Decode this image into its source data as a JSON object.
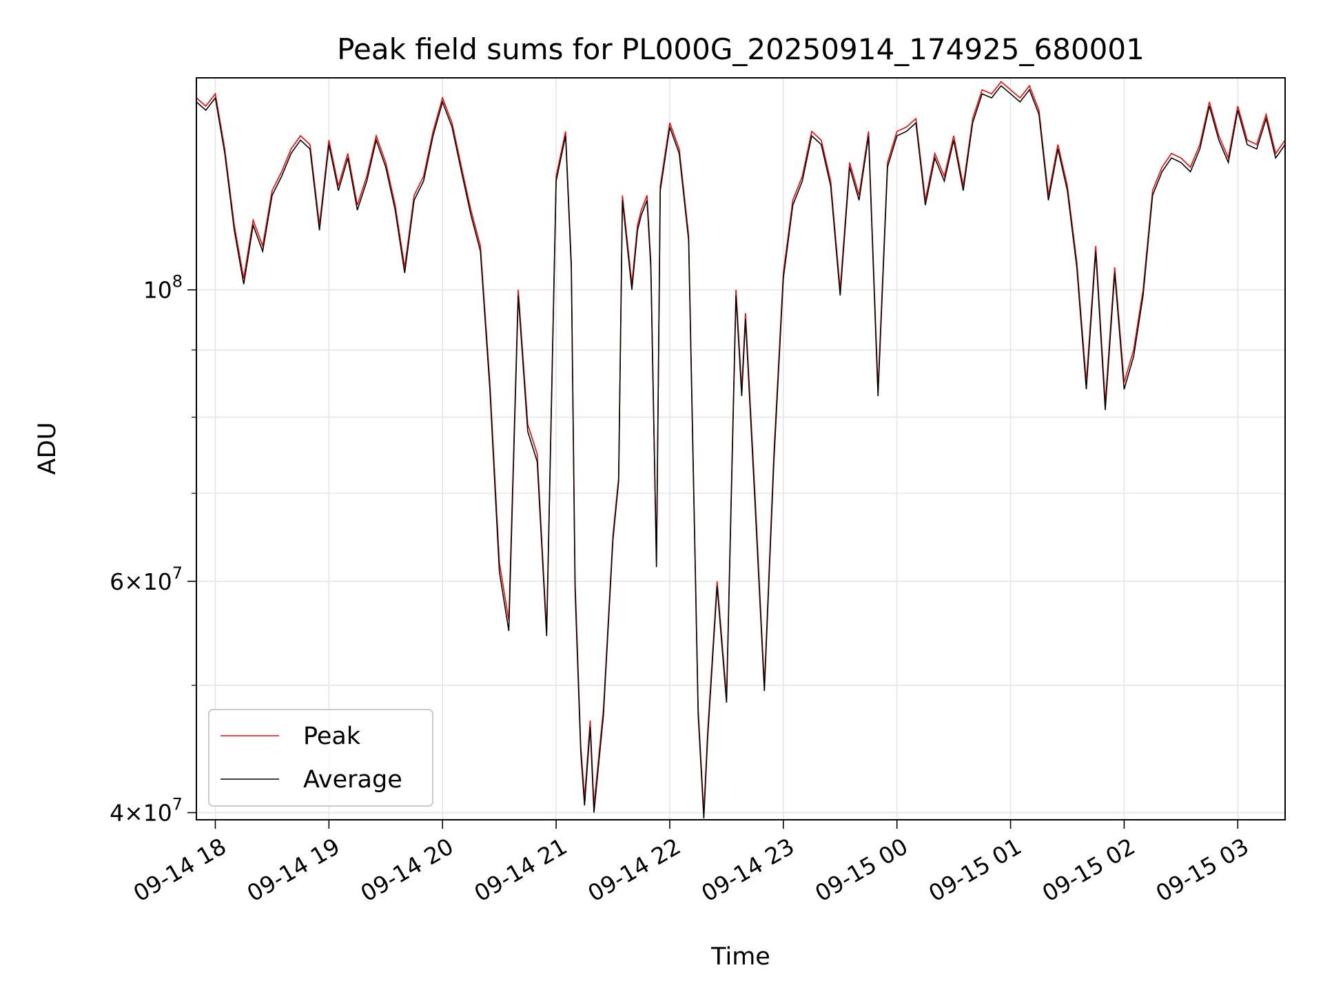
{
  "chart_data": {
    "type": "line",
    "title": "Peak field sums for PL000G_20250914_174925_680001",
    "xlabel": "Time",
    "ylabel": "ADU",
    "yscale": "log",
    "ylim": [
      39500000,
      145000000
    ],
    "xlim": [
      "2025-09-14 17:50",
      "2025-09-15 03:25"
    ],
    "grid": true,
    "legend_position": "lower-left",
    "x_ticks": [
      "09-14 18",
      "09-14 19",
      "09-14 20",
      "09-14 21",
      "09-14 22",
      "09-14 23",
      "09-15 00",
      "09-15 01",
      "09-15 02",
      "09-15 03"
    ],
    "y_major_ticks": [
      {
        "value": 40000000,
        "mantissa": "4",
        "base": "10",
        "exp": "7"
      },
      {
        "value": 60000000,
        "mantissa": "6",
        "base": "10",
        "exp": "7"
      },
      {
        "value": 100000000,
        "mantissa": "",
        "base": "10",
        "exp": "8"
      }
    ],
    "y_minor_ticks": [
      40000000,
      50000000,
      60000000,
      70000000,
      80000000,
      90000000
    ],
    "series": [
      {
        "name": "Peak",
        "color": "#ff0000",
        "x": [
          "2025-09-14 17:50",
          "2025-09-14 17:55",
          "2025-09-14 18:00",
          "2025-09-14 18:05",
          "2025-09-14 18:10",
          "2025-09-14 18:15",
          "2025-09-14 18:20",
          "2025-09-14 18:25",
          "2025-09-14 18:30",
          "2025-09-14 18:35",
          "2025-09-14 18:40",
          "2025-09-14 18:45",
          "2025-09-14 18:50",
          "2025-09-14 18:55",
          "2025-09-14 19:00",
          "2025-09-14 19:05",
          "2025-09-14 19:10",
          "2025-09-14 19:15",
          "2025-09-14 19:20",
          "2025-09-14 19:25",
          "2025-09-14 19:30",
          "2025-09-14 19:35",
          "2025-09-14 19:40",
          "2025-09-14 19:45",
          "2025-09-14 19:50",
          "2025-09-14 19:55",
          "2025-09-14 20:00",
          "2025-09-14 20:05",
          "2025-09-14 20:10",
          "2025-09-14 20:15",
          "2025-09-14 20:20",
          "2025-09-14 20:25",
          "2025-09-14 20:30",
          "2025-09-14 20:35",
          "2025-09-14 20:40",
          "2025-09-14 20:45",
          "2025-09-14 20:50",
          "2025-09-14 20:55",
          "2025-09-14 21:00",
          "2025-09-14 21:05",
          "2025-09-14 21:08",
          "2025-09-14 21:10",
          "2025-09-14 21:13",
          "2025-09-14 21:15",
          "2025-09-14 21:18",
          "2025-09-14 21:20",
          "2025-09-14 21:25",
          "2025-09-14 21:30",
          "2025-09-14 21:33",
          "2025-09-14 21:35",
          "2025-09-14 21:40",
          "2025-09-14 21:43",
          "2025-09-14 21:45",
          "2025-09-14 21:48",
          "2025-09-14 21:50",
          "2025-09-14 21:53",
          "2025-09-14 21:55",
          "2025-09-14 22:00",
          "2025-09-14 22:05",
          "2025-09-14 22:10",
          "2025-09-14 22:15",
          "2025-09-14 22:18",
          "2025-09-14 22:20",
          "2025-09-14 22:25",
          "2025-09-14 22:30",
          "2025-09-14 22:35",
          "2025-09-14 22:38",
          "2025-09-14 22:40",
          "2025-09-14 22:45",
          "2025-09-14 22:50",
          "2025-09-14 22:55",
          "2025-09-14 23:00",
          "2025-09-14 23:05",
          "2025-09-14 23:10",
          "2025-09-14 23:15",
          "2025-09-14 23:20",
          "2025-09-14 23:25",
          "2025-09-14 23:30",
          "2025-09-14 23:35",
          "2025-09-14 23:40",
          "2025-09-14 23:45",
          "2025-09-14 23:50",
          "2025-09-14 23:55",
          "2025-09-15 00:00",
          "2025-09-15 00:05",
          "2025-09-15 00:10",
          "2025-09-15 00:15",
          "2025-09-15 00:20",
          "2025-09-15 00:25",
          "2025-09-15 00:30",
          "2025-09-15 00:35",
          "2025-09-15 00:40",
          "2025-09-15 00:45",
          "2025-09-15 00:50",
          "2025-09-15 00:55",
          "2025-09-15 01:00",
          "2025-09-15 01:05",
          "2025-09-15 01:10",
          "2025-09-15 01:15",
          "2025-09-15 01:20",
          "2025-09-15 01:25",
          "2025-09-15 01:30",
          "2025-09-15 01:35",
          "2025-09-15 01:40",
          "2025-09-15 01:45",
          "2025-09-15 01:50",
          "2025-09-15 01:55",
          "2025-09-15 02:00",
          "2025-09-15 02:05",
          "2025-09-15 02:10",
          "2025-09-15 02:15",
          "2025-09-15 02:20",
          "2025-09-15 02:25",
          "2025-09-15 02:30",
          "2025-09-15 02:35",
          "2025-09-15 02:40",
          "2025-09-15 02:45",
          "2025-09-15 02:50",
          "2025-09-15 02:55",
          "2025-09-15 03:00",
          "2025-09-15 03:05",
          "2025-09-15 03:10",
          "2025-09-15 03:15",
          "2025-09-15 03:20",
          "2025-09-15 03:25"
        ],
        "values": [
          140000000,
          138000000,
          141000000,
          128000000,
          112000000,
          102000000,
          113000000,
          108000000,
          119000000,
          123000000,
          128000000,
          131000000,
          129000000,
          112000000,
          130000000,
          120000000,
          127000000,
          116000000,
          122000000,
          131000000,
          125000000,
          116000000,
          104000000,
          118000000,
          122000000,
          132000000,
          140000000,
          134000000,
          124000000,
          115000000,
          108000000,
          85000000,
          62000000,
          56000000,
          100000000,
          79000000,
          75000000,
          55000000,
          122000000,
          132000000,
          105000000,
          60000000,
          45000000,
          41000000,
          47000000,
          40500000,
          48000000,
          65000000,
          72000000,
          118000000,
          101000000,
          112000000,
          115000000,
          118000000,
          105000000,
          62000000,
          120000000,
          134000000,
          128000000,
          110000000,
          48000000,
          40000000,
          46000000,
          60000000,
          49000000,
          100000000,
          84000000,
          96000000,
          70000000,
          50000000,
          75000000,
          103000000,
          117000000,
          122000000,
          132000000,
          130000000,
          121000000,
          100000000,
          125000000,
          118000000,
          132000000,
          84000000,
          125000000,
          132000000,
          133000000,
          135000000,
          117000000,
          127000000,
          122000000,
          131000000,
          120000000,
          135000000,
          142000000,
          141000000,
          144000000,
          142000000,
          140000000,
          143000000,
          137000000,
          118000000,
          129000000,
          120000000,
          105000000,
          85000000,
          108000000,
          82000000,
          104000000,
          85000000,
          90000000,
          100000000,
          119000000,
          124000000,
          127000000,
          126000000,
          124000000,
          129000000,
          139000000,
          131000000,
          126000000,
          138000000,
          130000000,
          129000000,
          136000000,
          127000000,
          130000000
        ]
      },
      {
        "name": "Average",
        "color": "#000000",
        "x": [
          "2025-09-14 17:50",
          "2025-09-14 17:55",
          "2025-09-14 18:00",
          "2025-09-14 18:05",
          "2025-09-14 18:10",
          "2025-09-14 18:15",
          "2025-09-14 18:20",
          "2025-09-14 18:25",
          "2025-09-14 18:30",
          "2025-09-14 18:35",
          "2025-09-14 18:40",
          "2025-09-14 18:45",
          "2025-09-14 18:50",
          "2025-09-14 18:55",
          "2025-09-14 19:00",
          "2025-09-14 19:05",
          "2025-09-14 19:10",
          "2025-09-14 19:15",
          "2025-09-14 19:20",
          "2025-09-14 19:25",
          "2025-09-14 19:30",
          "2025-09-14 19:35",
          "2025-09-14 19:40",
          "2025-09-14 19:45",
          "2025-09-14 19:50",
          "2025-09-14 19:55",
          "2025-09-14 20:00",
          "2025-09-14 20:05",
          "2025-09-14 20:10",
          "2025-09-14 20:15",
          "2025-09-14 20:20",
          "2025-09-14 20:25",
          "2025-09-14 20:30",
          "2025-09-14 20:35",
          "2025-09-14 20:40",
          "2025-09-14 20:45",
          "2025-09-14 20:50",
          "2025-09-14 20:55",
          "2025-09-14 21:00",
          "2025-09-14 21:05",
          "2025-09-14 21:08",
          "2025-09-14 21:10",
          "2025-09-14 21:13",
          "2025-09-14 21:15",
          "2025-09-14 21:18",
          "2025-09-14 21:20",
          "2025-09-14 21:25",
          "2025-09-14 21:30",
          "2025-09-14 21:33",
          "2025-09-14 21:35",
          "2025-09-14 21:40",
          "2025-09-14 21:43",
          "2025-09-14 21:45",
          "2025-09-14 21:48",
          "2025-09-14 21:50",
          "2025-09-14 21:53",
          "2025-09-14 21:55",
          "2025-09-14 22:00",
          "2025-09-14 22:05",
          "2025-09-14 22:10",
          "2025-09-14 22:15",
          "2025-09-14 22:18",
          "2025-09-14 22:20",
          "2025-09-14 22:25",
          "2025-09-14 22:30",
          "2025-09-14 22:35",
          "2025-09-14 22:38",
          "2025-09-14 22:40",
          "2025-09-14 22:45",
          "2025-09-14 22:50",
          "2025-09-14 22:55",
          "2025-09-14 23:00",
          "2025-09-14 23:05",
          "2025-09-14 23:10",
          "2025-09-14 23:15",
          "2025-09-14 23:20",
          "2025-09-14 23:25",
          "2025-09-14 23:30",
          "2025-09-14 23:35",
          "2025-09-14 23:40",
          "2025-09-14 23:45",
          "2025-09-14 23:50",
          "2025-09-14 23:55",
          "2025-09-15 00:00",
          "2025-09-15 00:05",
          "2025-09-15 00:10",
          "2025-09-15 00:15",
          "2025-09-15 00:20",
          "2025-09-15 00:25",
          "2025-09-15 00:30",
          "2025-09-15 00:35",
          "2025-09-15 00:40",
          "2025-09-15 00:45",
          "2025-09-15 00:50",
          "2025-09-15 00:55",
          "2025-09-15 01:00",
          "2025-09-15 01:05",
          "2025-09-15 01:10",
          "2025-09-15 01:15",
          "2025-09-15 01:20",
          "2025-09-15 01:25",
          "2025-09-15 01:30",
          "2025-09-15 01:35",
          "2025-09-15 01:40",
          "2025-09-15 01:45",
          "2025-09-15 01:50",
          "2025-09-15 01:55",
          "2025-09-15 02:00",
          "2025-09-15 02:05",
          "2025-09-15 02:10",
          "2025-09-15 02:15",
          "2025-09-15 02:20",
          "2025-09-15 02:25",
          "2025-09-15 02:30",
          "2025-09-15 02:35",
          "2025-09-15 02:40",
          "2025-09-15 02:45",
          "2025-09-15 02:50",
          "2025-09-15 02:55",
          "2025-09-15 03:00",
          "2025-09-15 03:05",
          "2025-09-15 03:10",
          "2025-09-15 03:15",
          "2025-09-15 03:20",
          "2025-09-15 03:25"
        ],
        "values": [
          139000000,
          137000000,
          140000000,
          127000000,
          111000000,
          101000000,
          112000000,
          107000000,
          118000000,
          122000000,
          127000000,
          130000000,
          128000000,
          111000000,
          129000000,
          119000000,
          126000000,
          115000000,
          121000000,
          130000000,
          124000000,
          115000000,
          103000000,
          117000000,
          121000000,
          131000000,
          139000000,
          133000000,
          123000000,
          114000000,
          107000000,
          84000000,
          61000000,
          55000000,
          99000000,
          78000000,
          74000000,
          54500000,
          121000000,
          131000000,
          104000000,
          59000000,
          44500000,
          40500000,
          46500000,
          40000000,
          47500000,
          64500000,
          71500000,
          117000000,
          100000000,
          111000000,
          114000000,
          117000000,
          104000000,
          61500000,
          119000000,
          133000000,
          127000000,
          109000000,
          47500000,
          39600000,
          45500000,
          59500000,
          48500000,
          99000000,
          83000000,
          95000000,
          69000000,
          49500000,
          74000000,
          102000000,
          116000000,
          121000000,
          131000000,
          129000000,
          120000000,
          99000000,
          124000000,
          117000000,
          131000000,
          83000000,
          124000000,
          131000000,
          132000000,
          134000000,
          116000000,
          126000000,
          121000000,
          130000000,
          119000000,
          134000000,
          141000000,
          140000000,
          143000000,
          141000000,
          139000000,
          142000000,
          136000000,
          117000000,
          128000000,
          119000000,
          104000000,
          84000000,
          107000000,
          81000000,
          103000000,
          84000000,
          89000000,
          99000000,
          118000000,
          123000000,
          126000000,
          125000000,
          123000000,
          128000000,
          138000000,
          130000000,
          125000000,
          137000000,
          129000000,
          128000000,
          135000000,
          126000000,
          129000000
        ]
      }
    ]
  }
}
